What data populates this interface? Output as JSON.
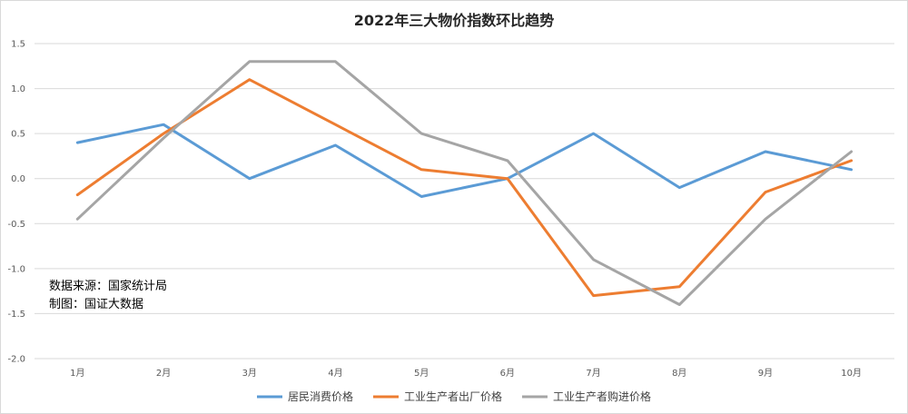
{
  "chart_data": {
    "type": "line",
    "title": "2022年三大物价指数环比趋势",
    "categories": [
      "1月",
      "2月",
      "3月",
      "4月",
      "5月",
      "6月",
      "7月",
      "8月",
      "9月",
      "10月"
    ],
    "series": [
      {
        "name": "居民消费价格",
        "color": "#5b9bd5",
        "values": [
          0.4,
          0.6,
          0.0,
          0.37,
          -0.2,
          0.0,
          0.5,
          -0.1,
          0.3,
          0.1
        ]
      },
      {
        "name": "工业生产者出厂价格",
        "color": "#ed7d31",
        "values": [
          -0.18,
          0.5,
          1.1,
          0.6,
          0.1,
          0.0,
          -1.3,
          -1.2,
          -0.15,
          0.2
        ]
      },
      {
        "name": "工业生产者购进价格",
        "color": "#a5a5a5",
        "values": [
          -0.45,
          0.45,
          1.3,
          1.3,
          0.5,
          0.2,
          -0.9,
          -1.4,
          -0.45,
          0.3
        ]
      }
    ],
    "ylim": [
      -2.0,
      1.5
    ],
    "yticks": [
      "1.5",
      "1.0",
      "0.5",
      "0.0",
      "-0.5",
      "-1.0",
      "-1.5",
      "-2.0"
    ],
    "ytick_values": [
      1.5,
      1.0,
      0.5,
      0.0,
      -0.5,
      -1.0,
      -1.5,
      -2.0
    ],
    "grid": true,
    "legend_position": "bottom"
  },
  "annotations": {
    "source": "数据来源：国家统计局",
    "credit": "制图：国证大数据"
  }
}
